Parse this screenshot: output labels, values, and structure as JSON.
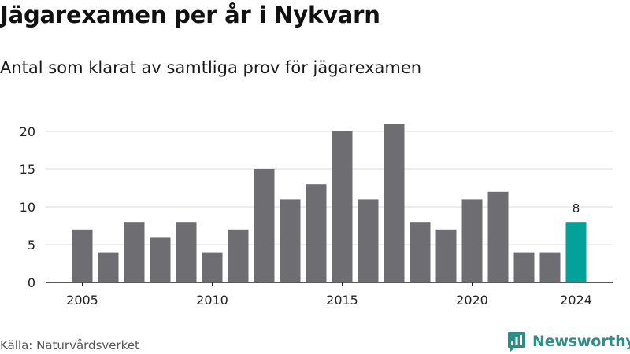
{
  "title": "Jägarexamen per år i Nykvarn",
  "subtitle": "Antal som klarat av samtliga prov för jägarexamen",
  "source": "Källa: Naturvårdsverket",
  "brand": {
    "name": "Newsworthy",
    "icon": "newsworthy-logo-icon",
    "color": "#2a8f86"
  },
  "colors": {
    "bar": "#6e6d72",
    "highlight": "#00a29a",
    "grid": "#d9d9d9",
    "axis": "#222222"
  },
  "chart_data": {
    "type": "bar",
    "title": "Jägarexamen per år i Nykvarn",
    "subtitle": "Antal som klarat av samtliga prov för jägarexamen",
    "categories": [
      2005,
      2006,
      2007,
      2008,
      2009,
      2010,
      2011,
      2012,
      2013,
      2014,
      2015,
      2016,
      2017,
      2018,
      2019,
      2020,
      2021,
      2022,
      2023,
      2024
    ],
    "values": [
      7,
      4,
      8,
      6,
      8,
      4,
      7,
      15,
      11,
      13,
      20,
      11,
      21,
      8,
      7,
      11,
      12,
      4,
      4,
      8
    ],
    "highlight_category": 2024,
    "highlight_label": "8",
    "x_ticks": [
      "2005",
      "2010",
      "2015",
      "2020",
      "2024"
    ],
    "y_ticks": [
      0,
      5,
      10,
      15,
      20
    ],
    "ylim": [
      0,
      22
    ],
    "grid": true,
    "legend": "none"
  }
}
